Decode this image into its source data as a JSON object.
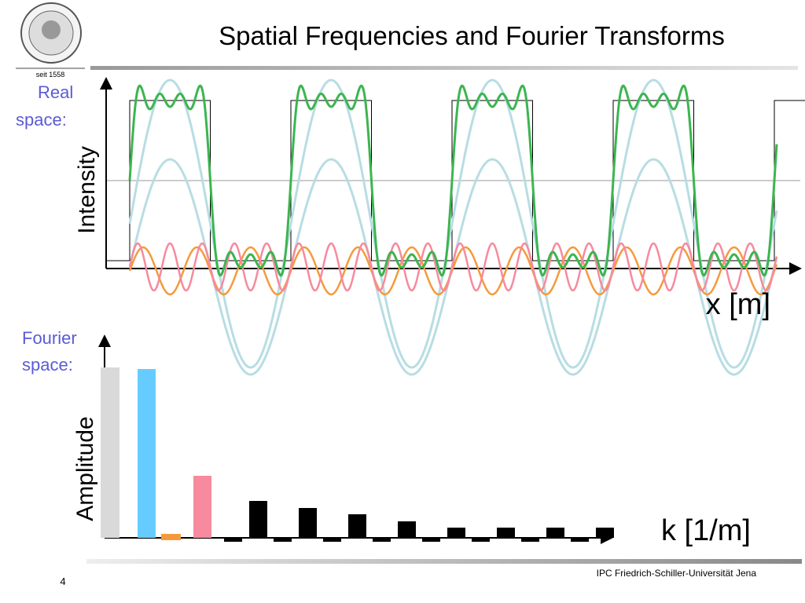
{
  "header": {
    "title": "Spatial Frequencies and Fourier Transforms",
    "logo_text": "seit 1558"
  },
  "real_space": {
    "label_line1": "Real",
    "label_line2": "space:",
    "y_label": "Intensity",
    "x_label": "x [m]"
  },
  "fourier_space": {
    "label_line1": "Fourier",
    "label_line2": "space:",
    "y_label": "Amplitude",
    "x_label": "k [1/m]"
  },
  "footer": {
    "page": "4",
    "institution": "IPC Friedrich-Schiller-Universität Jena"
  }
}
